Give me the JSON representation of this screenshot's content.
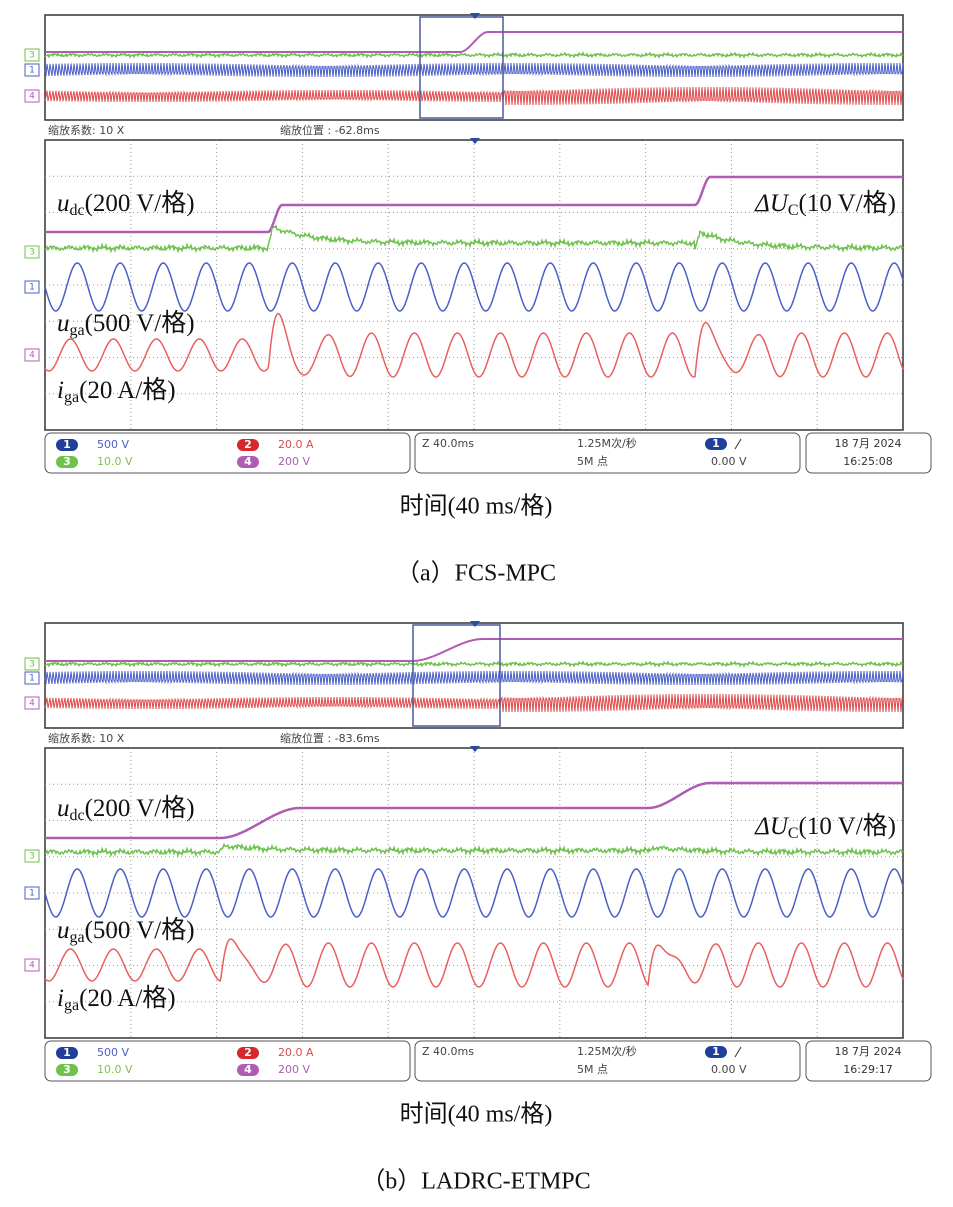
{
  "panels": [
    {
      "overview": {
        "zoom_factor": "缩放系数: 10 X",
        "zoom_position": "缩放位置 : -62.8ms"
      },
      "channel_markers": [
        "3",
        "1",
        "4"
      ],
      "traces": {
        "udc": {
          "symbol": "u",
          "subscript": "dc",
          "scale": "(200 V/格)"
        },
        "delta_uc": {
          "symbol": "ΔU",
          "subscript": "C",
          "scale": "(10 V/格)"
        },
        "uga": {
          "symbol": "u",
          "subscript": "ga",
          "scale": "(500 V/格)"
        },
        "iga": {
          "symbol": "i",
          "subscript": "ga",
          "scale": "(20 A/格)"
        }
      },
      "status": {
        "channels": [
          {
            "number": "1",
            "setting": "500 V"
          },
          {
            "number": "2",
            "setting": "20.0 A"
          },
          {
            "number": "3",
            "setting": "10.0 V"
          },
          {
            "number": "4",
            "setting": "200 V"
          }
        ],
        "timebase": "Z 40.0ms",
        "sample_rate": "1.25M次/秒",
        "record_length": "5M 点",
        "trigger_channel": "1",
        "trigger_level": "0.00 V",
        "date": "18 7月 2024",
        "time": "16:25:08"
      },
      "time_axis": "时间(40 ms/格)",
      "caption": "（a）FCS-MPC"
    },
    {
      "overview": {
        "zoom_factor": "缩放系数: 10 X",
        "zoom_position": "缩放位置 : -83.6ms"
      },
      "channel_markers": [
        "3",
        "1",
        "4"
      ],
      "traces": {
        "udc": {
          "symbol": "u",
          "subscript": "dc",
          "scale": "(200 V/格)"
        },
        "delta_uc": {
          "symbol": "ΔU",
          "subscript": "C",
          "scale": "(10 V/格)"
        },
        "uga": {
          "symbol": "u",
          "subscript": "ga",
          "scale": "(500 V/格)"
        },
        "iga": {
          "symbol": "i",
          "subscript": "ga",
          "scale": "(20 A/格)"
        }
      },
      "status": {
        "channels": [
          {
            "number": "1",
            "setting": "500 V"
          },
          {
            "number": "2",
            "setting": "20.0 A"
          },
          {
            "number": "3",
            "setting": "10.0 V"
          },
          {
            "number": "4",
            "setting": "200 V"
          }
        ],
        "timebase": "Z 40.0ms",
        "sample_rate": "1.25M次/秒",
        "record_length": "5M 点",
        "trigger_channel": "1",
        "trigger_level": "0.00 V",
        "date": "18 7月 2024",
        "time": "16:29:17"
      },
      "time_axis": "时间(40 ms/格)",
      "caption": "（b）LADRC-ETMPC"
    }
  ]
}
